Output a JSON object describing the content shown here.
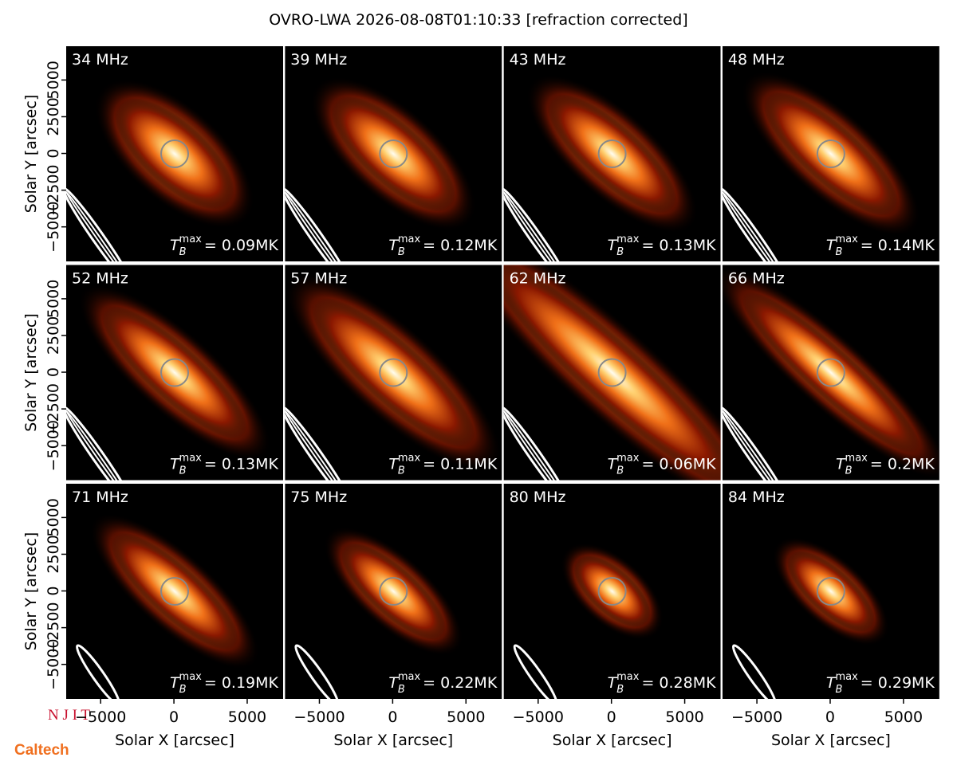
{
  "title": "OVRO-LWA 2026-08-08T01:10:33 [refraction corrected]",
  "tmax_symbol": {
    "base": "T",
    "sub": "B",
    "sup": "max"
  },
  "logos": [
    "N J I T",
    "Caltech"
  ],
  "chart_data": [
    {
      "type": "image",
      "label": "34 MHz",
      "tmax_label": "= 0.09MK",
      "xlim": [
        -7350,
        7450
      ],
      "ylim": [
        -7350,
        7300
      ],
      "ylabel": "Solar Y [arcsec]",
      "yticks": [
        {
          "value": -5000,
          "label": "−5000"
        },
        {
          "value": -2500,
          "label": "−2500"
        },
        0,
        2500,
        5000
      ]
    },
    {
      "type": "image",
      "label": "39 MHz",
      "tmax_label": "= 0.12MK",
      "xlim": [
        -7350,
        7450
      ],
      "ylim": [
        -7350,
        7300
      ]
    },
    {
      "type": "image",
      "label": "43 MHz",
      "tmax_label": "= 0.13MK",
      "xlim": [
        -7350,
        7450
      ],
      "ylim": [
        -7350,
        7300
      ]
    },
    {
      "type": "image",
      "label": "48 MHz",
      "tmax_label": "= 0.14MK",
      "xlim": [
        -7350,
        7450
      ],
      "ylim": [
        -7350,
        7300
      ]
    },
    {
      "type": "image",
      "label": "52 MHz",
      "tmax_label": "= 0.13MK",
      "xlim": [
        -7350,
        7450
      ],
      "ylim": [
        -7350,
        7300
      ],
      "ylabel": "Solar Y [arcsec]",
      "yticks": [
        {
          "value": -5000,
          "label": "−5000"
        },
        {
          "value": -2500,
          "label": "−2500"
        },
        0,
        2500,
        5000
      ]
    },
    {
      "type": "image",
      "label": "57 MHz",
      "tmax_label": "= 0.11MK",
      "xlim": [
        -7350,
        7450
      ],
      "ylim": [
        -7350,
        7300
      ]
    },
    {
      "type": "image",
      "label": "62 MHz",
      "tmax_label": "= 0.06MK",
      "xlim": [
        -7350,
        7450
      ],
      "ylim": [
        -7350,
        7300
      ]
    },
    {
      "type": "image",
      "label": "66 MHz",
      "tmax_label": "= 0.2MK",
      "xlim": [
        -7350,
        7450
      ],
      "ylim": [
        -7350,
        7300
      ]
    },
    {
      "type": "image",
      "label": "71 MHz",
      "tmax_label": "= 0.19MK",
      "xlim": [
        -7350,
        7450
      ],
      "ylim": [
        -7350,
        7300
      ],
      "ylabel": "Solar Y [arcsec]",
      "yticks": [
        {
          "value": -5000,
          "label": "−5000"
        },
        {
          "value": -2500,
          "label": "−2500"
        },
        0,
        2500,
        5000
      ],
      "xlabel": "Solar X [arcsec]",
      "xticks": [
        {
          "value": -5000,
          "label": "−5000"
        },
        0,
        5000
      ]
    },
    {
      "type": "image",
      "label": "75 MHz",
      "tmax_label": "= 0.22MK",
      "xlim": [
        -7350,
        7450
      ],
      "ylim": [
        -7350,
        7300
      ],
      "xlabel": "Solar X [arcsec]",
      "xticks": [
        {
          "value": -5000,
          "label": "−5000"
        },
        0,
        5000
      ]
    },
    {
      "type": "image",
      "label": "80 MHz",
      "tmax_label": "= 0.28MK",
      "xlim": [
        -7350,
        7450
      ],
      "ylim": [
        -7350,
        7300
      ],
      "xlabel": "Solar X [arcsec]",
      "xticks": [
        {
          "value": -5000,
          "label": "−5000"
        },
        0,
        5000
      ]
    },
    {
      "type": "image",
      "label": "84 MHz",
      "tmax_label": "= 0.29MK",
      "xlim": [
        -7350,
        7450
      ],
      "ylim": [
        -7350,
        7300
      ],
      "xlabel": "Solar X [arcsec]",
      "xticks": [
        {
          "value": -5000,
          "label": "−5000"
        },
        0,
        5000
      ]
    }
  ]
}
